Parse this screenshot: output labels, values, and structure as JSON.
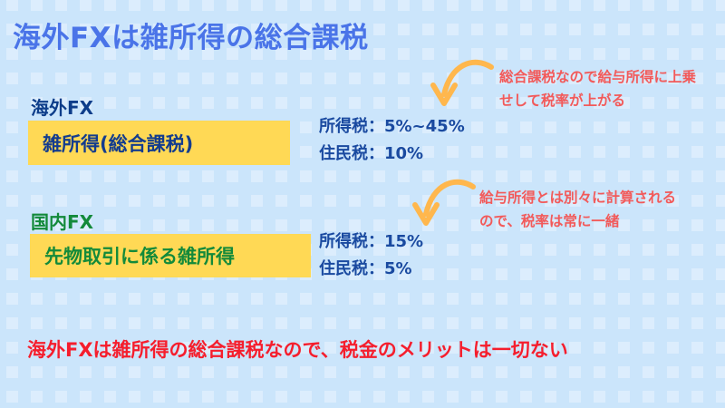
{
  "title": "海外FXは雑所得の総合課税",
  "overseas": {
    "label": "海外FX",
    "category": "雑所得(総合課税)",
    "income_tax": "所得税：5%~45%",
    "resident_tax": "住民税：10%",
    "note": "総合課税なので給与所得に上乗せして税率が上がる"
  },
  "domestic": {
    "label": "国内FX",
    "category": "先物取引に係る雑所得",
    "income_tax": "所得税：15%",
    "resident_tax": "住民税：5%",
    "note": "給与所得とは別々に計算されるので、税率は常に一緒"
  },
  "conclusion": "海外FXは雑所得の総合課税なので、税金のメリットは一切ない",
  "colors": {
    "background": "#cbe5fb",
    "title": "#4a74e8",
    "highlight_box": "#ffd955",
    "overseas": "#0d3d8a",
    "domestic": "#138a3a",
    "note": "#f25a5a",
    "conclusion": "#f51e2d",
    "arrow": "#ffb74d"
  },
  "icons": [
    "curved-arrow-icon",
    "curved-arrow-icon"
  ]
}
